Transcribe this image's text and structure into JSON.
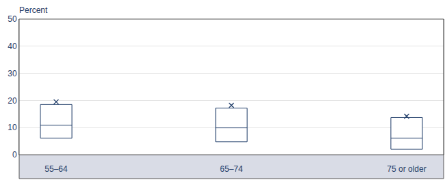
{
  "chart_data": {
    "type": "box",
    "ylabel": "Percent",
    "categories": [
      "55–64",
      "65–74",
      "75 or older"
    ],
    "q1": [
      6.1,
      4.8,
      2.0
    ],
    "median": [
      10.9,
      9.9,
      6.1
    ],
    "q3": [
      18.5,
      17.2,
      13.7
    ],
    "mean": [
      19.5,
      18.2,
      14.2
    ],
    "marker": "x",
    "color": "#1f3c68",
    "ylim": [
      0,
      50
    ],
    "yticks": [
      0,
      10,
      20,
      30,
      40,
      50
    ],
    "grid": true
  }
}
